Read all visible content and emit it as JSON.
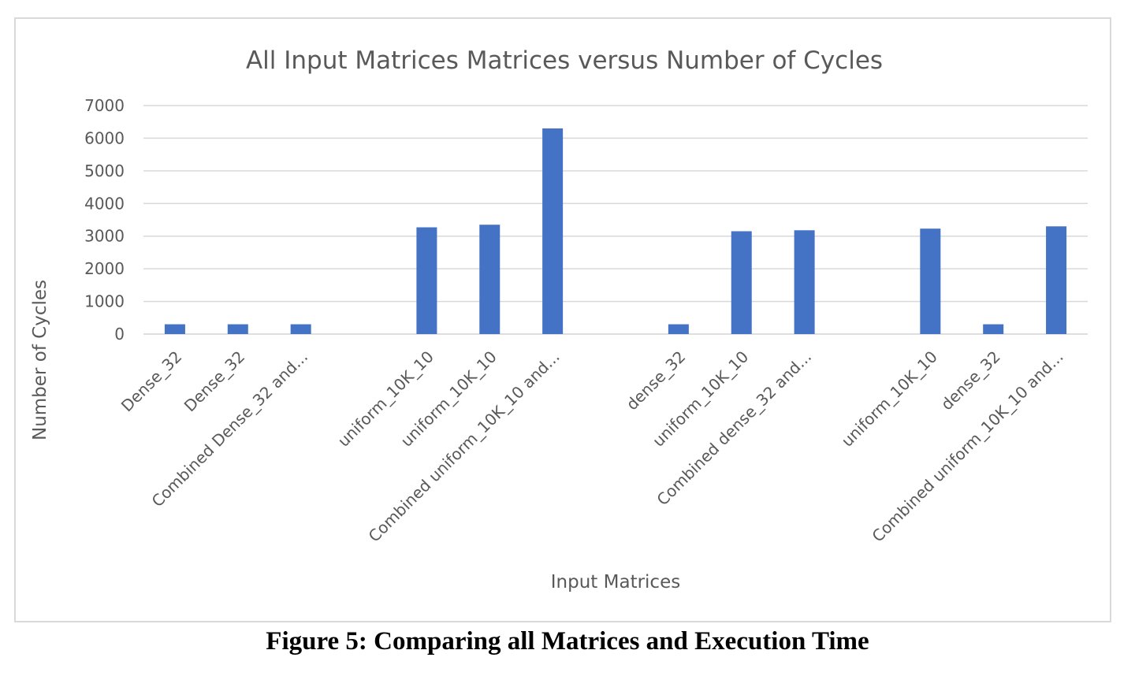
{
  "caption": "Figure 5: Comparing all Matrices and Execution Time",
  "colors": {
    "bar": "#4472c4",
    "grid": "#d9d9d9",
    "text": "#595959"
  },
  "chart_data": {
    "type": "bar",
    "title": "All Input Matrices Matrices versus Number of Cycles",
    "xlabel": "Input Matrices",
    "ylabel": "Number of Cycles",
    "ylim": [
      0,
      7000
    ],
    "yticks": [
      0,
      1000,
      2000,
      3000,
      4000,
      5000,
      6000,
      7000
    ],
    "grid": true,
    "legend": "none",
    "categories": [
      "Dense_32",
      "Dense_32",
      "Combined Dense_32 and...",
      "",
      "uniform_10K_10",
      "uniform_10K_10",
      "Combined uniform_10K_10 and...",
      "",
      "dense_32",
      "uniform_10K_10",
      "Combined dense_32 and...",
      "",
      "uniform_10K_10",
      "dense_32",
      "Combined uniform_10K_10 and..."
    ],
    "values": [
      300,
      300,
      300,
      null,
      3270,
      3350,
      6300,
      null,
      300,
      3150,
      3180,
      null,
      3230,
      300,
      3300
    ]
  }
}
